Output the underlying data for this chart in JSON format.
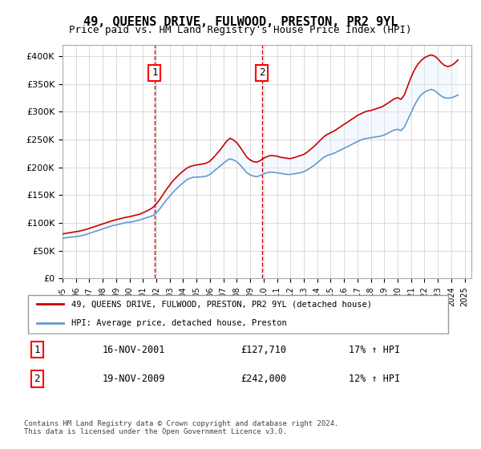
{
  "title": "49, QUEENS DRIVE, FULWOOD, PRESTON, PR2 9YL",
  "subtitle": "Price paid vs. HM Land Registry's House Price Index (HPI)",
  "ylabel_ticks": [
    "£0",
    "£50K",
    "£100K",
    "£150K",
    "£200K",
    "£250K",
    "£300K",
    "£350K",
    "£400K"
  ],
  "ytick_values": [
    0,
    50000,
    100000,
    150000,
    200000,
    250000,
    300000,
    350000,
    400000
  ],
  "ylim": [
    0,
    420000
  ],
  "xlim_start": 1995.0,
  "xlim_end": 2025.5,
  "sale1_date": 2001.875,
  "sale1_label": "1",
  "sale1_price": 127710,
  "sale1_text": "16-NOV-2001",
  "sale1_pct": "17% ↑ HPI",
  "sale2_date": 2009.875,
  "sale2_label": "2",
  "sale2_price": 242000,
  "sale2_text": "19-NOV-2009",
  "sale2_pct": "12% ↑ HPI",
  "hpi_color": "#6699cc",
  "price_color": "#cc0000",
  "fill_color": "#ddeeff",
  "vline_color": "#cc0000",
  "legend_label_price": "49, QUEENS DRIVE, FULWOOD, PRESTON, PR2 9YL (detached house)",
  "legend_label_hpi": "HPI: Average price, detached house, Preston",
  "footer": "Contains HM Land Registry data © Crown copyright and database right 2024.\nThis data is licensed under the Open Government Licence v3.0.",
  "hpi_data_x": [
    1995.0,
    1995.25,
    1995.5,
    1995.75,
    1996.0,
    1996.25,
    1996.5,
    1996.75,
    1997.0,
    1997.25,
    1997.5,
    1997.75,
    1998.0,
    1998.25,
    1998.5,
    1998.75,
    1999.0,
    1999.25,
    1999.5,
    1999.75,
    2000.0,
    2000.25,
    2000.5,
    2000.75,
    2001.0,
    2001.25,
    2001.5,
    2001.75,
    2002.0,
    2002.25,
    2002.5,
    2002.75,
    2003.0,
    2003.25,
    2003.5,
    2003.75,
    2004.0,
    2004.25,
    2004.5,
    2004.75,
    2005.0,
    2005.25,
    2005.5,
    2005.75,
    2006.0,
    2006.25,
    2006.5,
    2006.75,
    2007.0,
    2007.25,
    2007.5,
    2007.75,
    2008.0,
    2008.25,
    2008.5,
    2008.75,
    2009.0,
    2009.25,
    2009.5,
    2009.75,
    2010.0,
    2010.25,
    2010.5,
    2010.75,
    2011.0,
    2011.25,
    2011.5,
    2011.75,
    2012.0,
    2012.25,
    2012.5,
    2012.75,
    2013.0,
    2013.25,
    2013.5,
    2013.75,
    2014.0,
    2014.25,
    2014.5,
    2014.75,
    2015.0,
    2015.25,
    2015.5,
    2015.75,
    2016.0,
    2016.25,
    2016.5,
    2016.75,
    2017.0,
    2017.25,
    2017.5,
    2017.75,
    2018.0,
    2018.25,
    2018.5,
    2018.75,
    2019.0,
    2019.25,
    2019.5,
    2019.75,
    2020.0,
    2020.25,
    2020.5,
    2020.75,
    2021.0,
    2021.25,
    2021.5,
    2021.75,
    2022.0,
    2022.25,
    2022.5,
    2022.75,
    2023.0,
    2023.25,
    2023.5,
    2023.75,
    2024.0,
    2024.25,
    2024.5
  ],
  "hpi_data_y": [
    72000,
    73000,
    74000,
    74500,
    75000,
    76000,
    77500,
    79000,
    81000,
    83000,
    85000,
    87000,
    89000,
    91000,
    93000,
    95000,
    96000,
    97500,
    99000,
    100500,
    101000,
    102000,
    103500,
    105000,
    107000,
    109000,
    111000,
    113000,
    118000,
    125000,
    133000,
    141000,
    148000,
    155000,
    161000,
    167000,
    172000,
    177000,
    180000,
    182000,
    182000,
    182500,
    183000,
    184000,
    187000,
    192000,
    197000,
    202000,
    207000,
    212000,
    215000,
    213000,
    210000,
    204000,
    197000,
    190000,
    186000,
    184000,
    183000,
    185000,
    188000,
    190000,
    191000,
    191000,
    190000,
    189000,
    188000,
    187000,
    187000,
    188000,
    189000,
    190000,
    192000,
    195000,
    199000,
    203000,
    208000,
    213000,
    218000,
    221000,
    223000,
    225000,
    228000,
    231000,
    234000,
    237000,
    240000,
    243000,
    246000,
    249000,
    251000,
    252000,
    253000,
    254000,
    255000,
    256000,
    258000,
    261000,
    264000,
    267000,
    268000,
    266000,
    272000,
    285000,
    298000,
    311000,
    322000,
    330000,
    335000,
    338000,
    340000,
    338000,
    333000,
    328000,
    325000,
    324000,
    325000,
    327000,
    330000
  ],
  "price_data_x": [
    1995.0,
    1995.25,
    1995.5,
    1995.75,
    1996.0,
    1996.25,
    1996.5,
    1996.75,
    1997.0,
    1997.25,
    1997.5,
    1997.75,
    1998.0,
    1998.25,
    1998.5,
    1998.75,
    1999.0,
    1999.25,
    1999.5,
    1999.75,
    2000.0,
    2000.25,
    2000.5,
    2000.75,
    2001.0,
    2001.25,
    2001.5,
    2001.75,
    2002.0,
    2002.25,
    2002.5,
    2002.75,
    2003.0,
    2003.25,
    2003.5,
    2003.75,
    2004.0,
    2004.25,
    2004.5,
    2004.75,
    2005.0,
    2005.25,
    2005.5,
    2005.75,
    2006.0,
    2006.25,
    2006.5,
    2006.75,
    2007.0,
    2007.25,
    2007.5,
    2007.75,
    2008.0,
    2008.25,
    2008.5,
    2008.75,
    2009.0,
    2009.25,
    2009.5,
    2009.75,
    2010.0,
    2010.25,
    2010.5,
    2010.75,
    2011.0,
    2011.25,
    2011.5,
    2011.75,
    2012.0,
    2012.25,
    2012.5,
    2012.75,
    2013.0,
    2013.25,
    2013.5,
    2013.75,
    2014.0,
    2014.25,
    2014.5,
    2014.75,
    2015.0,
    2015.25,
    2015.5,
    2015.75,
    2016.0,
    2016.25,
    2016.5,
    2016.75,
    2017.0,
    2017.25,
    2017.5,
    2017.75,
    2018.0,
    2018.25,
    2018.5,
    2018.75,
    2019.0,
    2019.25,
    2019.5,
    2019.75,
    2020.0,
    2020.25,
    2020.5,
    2020.75,
    2021.0,
    2021.25,
    2021.5,
    2021.75,
    2022.0,
    2022.25,
    2022.5,
    2022.75,
    2023.0,
    2023.25,
    2023.5,
    2023.75,
    2024.0,
    2024.25,
    2024.5
  ],
  "price_data_y": [
    80000,
    81000,
    82000,
    83000,
    84000,
    85000,
    86500,
    88000,
    90000,
    92000,
    94000,
    96000,
    98000,
    100000,
    102000,
    104000,
    105500,
    107000,
    108500,
    110000,
    111000,
    112500,
    114000,
    115500,
    118000,
    121000,
    124000,
    127710,
    134000,
    142000,
    151000,
    160000,
    168000,
    176000,
    182000,
    188000,
    193000,
    198000,
    201000,
    203000,
    204000,
    205000,
    206000,
    207500,
    211000,
    217000,
    224000,
    231000,
    239000,
    247000,
    252000,
    249000,
    244000,
    236000,
    227000,
    218000,
    213000,
    210000,
    209000,
    212000,
    216000,
    219000,
    221000,
    220500,
    220000,
    218000,
    217000,
    216000,
    215500,
    217000,
    219000,
    221000,
    223000,
    227000,
    232000,
    237000,
    243000,
    249000,
    255000,
    259000,
    262000,
    265000,
    269000,
    273000,
    277000,
    281000,
    285000,
    289000,
    293000,
    296000,
    299000,
    301000,
    302000,
    304000,
    306000,
    308000,
    311000,
    315000,
    319000,
    323000,
    325000,
    322000,
    330000,
    346000,
    362000,
    375000,
    385000,
    392000,
    397000,
    400000,
    402000,
    400000,
    395000,
    388000,
    383000,
    381000,
    383000,
    387000,
    393000
  ]
}
